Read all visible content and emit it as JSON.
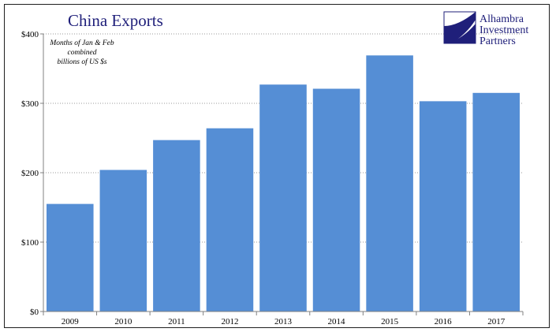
{
  "chart_data": {
    "type": "bar",
    "title": "China Exports",
    "annotation": [
      "Months of Jan & Feb",
      "combined",
      "billions of US $s"
    ],
    "categories": [
      "2009",
      "2010",
      "2011",
      "2012",
      "2013",
      "2014",
      "2015",
      "2016",
      "2017"
    ],
    "values": [
      155,
      204,
      247,
      264,
      327,
      321,
      369,
      303,
      315
    ],
    "ylim": [
      0,
      400
    ],
    "yticks": [
      0,
      100,
      200,
      300,
      400
    ],
    "ytick_labels": [
      "$0",
      "$100",
      "$200",
      "$300",
      "$400"
    ],
    "xlabel": "",
    "ylabel": "",
    "grid": "horizontal dotted",
    "bar_color": "#558ED5"
  },
  "logo": {
    "lines": [
      "Alhambra",
      "Investment",
      "Partners"
    ],
    "color": "#1F1F7A"
  }
}
